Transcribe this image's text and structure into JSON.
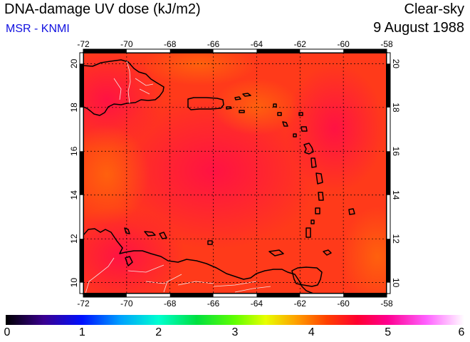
{
  "header": {
    "title": "DNA-damage UV dose (kJ/m2)",
    "subtitle": "MSR - KNMI",
    "condition": "Clear-sky",
    "date": "9 August 1988"
  },
  "colors": {
    "subtitle": "#1010e0",
    "field_base": "#ff3a1a",
    "coastline": "#000000",
    "borders": "#ffffff",
    "gridlines": "#000000"
  },
  "map": {
    "lon_range": [
      -72,
      -58
    ],
    "lat_range": [
      9.5,
      20.5
    ],
    "lon_ticks": [
      -72,
      -70,
      -68,
      -66,
      -64,
      -62,
      -60,
      -58
    ],
    "lat_ticks": [
      10,
      12,
      14,
      16,
      18,
      20
    ],
    "lon_tick_labels": [
      "-72",
      "-70",
      "-68",
      "-66",
      "-64",
      "-62",
      "-60",
      "-58"
    ],
    "lat_tick_labels": [
      "10",
      "12",
      "14",
      "16",
      "18",
      "20"
    ],
    "gridlines": "dotted",
    "field_min": 4.2,
    "field_max": 5.0,
    "islands": [
      "Hispaniola",
      "Puerto Rico",
      "Virgin Islands",
      "Anguilla",
      "Antigua",
      "Guadeloupe",
      "Dominica",
      "Martinique",
      "St Lucia",
      "St Vincent",
      "Grenada",
      "Barbados",
      "Aruba",
      "Curacao",
      "Bonaire",
      "Trinidad",
      "Tobago",
      "Margarita",
      "Venezuela coast"
    ]
  },
  "colorbar": {
    "min": 0,
    "max": 6,
    "tick_labels": [
      "0",
      "1",
      "2",
      "3",
      "4",
      "5",
      "6"
    ],
    "stops": [
      {
        "value": 0.0,
        "color": "#000000"
      },
      {
        "value": 0.5,
        "color": "#3a0090"
      },
      {
        "value": 1.0,
        "color": "#0010ff"
      },
      {
        "value": 1.5,
        "color": "#00a0ff"
      },
      {
        "value": 2.0,
        "color": "#00ffd0"
      },
      {
        "value": 2.5,
        "color": "#00e040"
      },
      {
        "value": 3.0,
        "color": "#60ff00"
      },
      {
        "value": 3.4,
        "color": "#e8ff00"
      },
      {
        "value": 3.8,
        "color": "#ffa000"
      },
      {
        "value": 4.2,
        "color": "#ff4000"
      },
      {
        "value": 4.6,
        "color": "#ff0030"
      },
      {
        "value": 5.0,
        "color": "#ff0090"
      },
      {
        "value": 5.5,
        "color": "#ff60ff"
      },
      {
        "value": 6.0,
        "color": "#ffffff"
      }
    ]
  }
}
